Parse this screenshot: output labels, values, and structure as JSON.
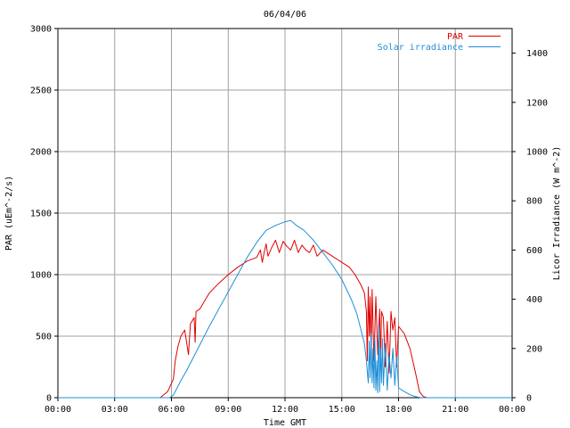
{
  "chart_data": {
    "type": "line",
    "title": "06/04/06",
    "xlabel": "Time GMT",
    "ylabel_left": "PAR (uEm^-2/s)",
    "ylabel_right": "Licor Irradiance (W m^-2)",
    "x_unit": "hours GMT",
    "xlim": [
      0,
      24
    ],
    "ylim_left": [
      0,
      3000
    ],
    "ylim_right": [
      0,
      1500
    ],
    "grid": true,
    "legend_position": "top-right",
    "x_ticks": [
      {
        "value": 0,
        "label": "00:00"
      },
      {
        "value": 3,
        "label": "03:00"
      },
      {
        "value": 6,
        "label": "06:00"
      },
      {
        "value": 9,
        "label": "09:00"
      },
      {
        "value": 12,
        "label": "12:00"
      },
      {
        "value": 15,
        "label": "15:00"
      },
      {
        "value": 18,
        "label": "18:00"
      },
      {
        "value": 21,
        "label": "21:00"
      },
      {
        "value": 24,
        "label": "00:00"
      }
    ],
    "y_left_ticks": [
      0,
      500,
      1000,
      1500,
      2000,
      2500,
      3000
    ],
    "y_right_ticks": [
      0,
      200,
      400,
      600,
      800,
      1000,
      1200,
      1400
    ],
    "series": [
      {
        "name": "PAR",
        "axis": "left",
        "color": "#e00000",
        "x": [
          0,
          5.4,
          5.8,
          6.1,
          6.2,
          6.35,
          6.5,
          6.7,
          6.9,
          7.0,
          7.2,
          7.25,
          7.3,
          7.5,
          7.8,
          8.0,
          8.5,
          9.0,
          9.5,
          10.0,
          10.5,
          10.7,
          10.8,
          10.9,
          11.0,
          11.1,
          11.3,
          11.5,
          11.7,
          11.9,
          12.1,
          12.3,
          12.5,
          12.7,
          12.9,
          13.1,
          13.3,
          13.5,
          13.7,
          14.0,
          14.5,
          15.0,
          15.4,
          15.7,
          16.0,
          16.2,
          16.3,
          16.35,
          16.4,
          16.45,
          16.5,
          16.55,
          16.6,
          16.7,
          16.8,
          16.9,
          17.0,
          17.05,
          17.1,
          17.2,
          17.3,
          17.4,
          17.5,
          17.6,
          17.7,
          17.8,
          17.9,
          18.0,
          18.3,
          18.6,
          18.9,
          19.1,
          19.3,
          19.5,
          24
        ],
        "y": [
          0,
          0,
          50,
          150,
          300,
          420,
          500,
          550,
          350,
          600,
          650,
          450,
          700,
          720,
          800,
          850,
          930,
          1000,
          1060,
          1110,
          1140,
          1200,
          1100,
          1180,
          1250,
          1150,
          1220,
          1280,
          1180,
          1270,
          1230,
          1200,
          1280,
          1180,
          1240,
          1200,
          1180,
          1240,
          1150,
          1200,
          1150,
          1100,
          1060,
          1000,
          920,
          850,
          700,
          300,
          900,
          500,
          820,
          350,
          880,
          300,
          820,
          350,
          720,
          300,
          700,
          650,
          250,
          620,
          200,
          700,
          550,
          650,
          250,
          580,
          520,
          400,
          200,
          50,
          10,
          0,
          0
        ]
      },
      {
        "name": "Solar irradiance",
        "axis": "right",
        "color": "#1f8fd6",
        "x": [
          0,
          5.9,
          6.1,
          6.3,
          6.5,
          6.8,
          7.2,
          7.6,
          8.0,
          8.5,
          9.0,
          9.5,
          10.0,
          10.5,
          11.0,
          11.5,
          12.0,
          12.3,
          12.6,
          13.0,
          13.5,
          14.0,
          14.5,
          15.0,
          15.5,
          15.8,
          16.0,
          16.2,
          16.3,
          16.4,
          16.45,
          16.5,
          16.55,
          16.6,
          16.65,
          16.7,
          16.75,
          16.8,
          16.85,
          16.9,
          16.95,
          17.0,
          17.05,
          17.1,
          17.15,
          17.2,
          17.3,
          17.4,
          17.5,
          17.6,
          17.7,
          17.8,
          17.9,
          18.0,
          18.3,
          18.6,
          18.9,
          19.2,
          24
        ],
        "y": [
          0,
          0,
          10,
          40,
          70,
          110,
          170,
          230,
          290,
          360,
          430,
          500,
          570,
          630,
          680,
          700,
          715,
          720,
          700,
          680,
          640,
          590,
          540,
          480,
          400,
          340,
          280,
          220,
          150,
          60,
          230,
          80,
          260,
          60,
          200,
          40,
          240,
          30,
          150,
          20,
          300,
          25,
          200,
          60,
          240,
          50,
          220,
          30,
          180,
          80,
          200,
          50,
          170,
          40,
          25,
          12,
          4,
          0,
          0
        ]
      }
    ]
  }
}
